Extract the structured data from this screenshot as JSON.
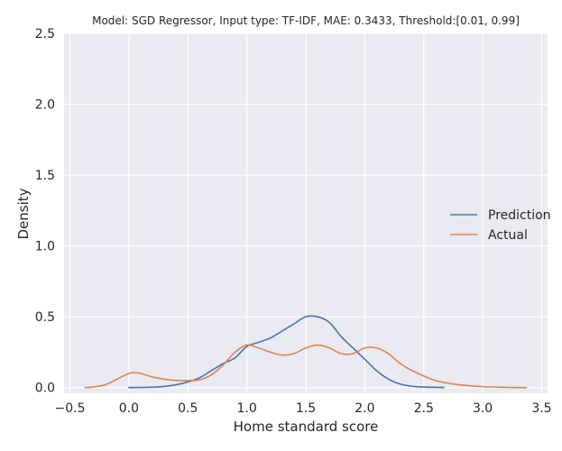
{
  "chart_data": {
    "type": "line",
    "title": "Model: SGD Regressor, Input type: TF-IDF, MAE: 0.3433, Threshold:[0.01, 0.99]",
    "xlabel": "Home standard score",
    "ylabel": "Density",
    "xlim": [
      -0.55,
      3.55
    ],
    "ylim": [
      -0.04,
      2.5
    ],
    "xticks": [
      -0.5,
      0.0,
      0.5,
      1.0,
      1.5,
      2.0,
      2.5,
      3.0,
      3.5
    ],
    "xtick_labels": [
      "−0.5",
      "0.0",
      "0.5",
      "1.0",
      "1.5",
      "2.0",
      "2.5",
      "3.0",
      "3.5"
    ],
    "yticks": [
      0.0,
      0.5,
      1.0,
      1.5,
      2.0,
      2.5
    ],
    "ytick_labels": [
      "0.0",
      "0.5",
      "1.0",
      "1.5",
      "2.0",
      "2.5"
    ],
    "grid": true,
    "legend_position": "center-right",
    "background_color": "#eaeaf2",
    "series": [
      {
        "name": "Prediction",
        "color": "#4c72b0",
        "x": [
          0.0,
          0.2,
          0.3,
          0.4,
          0.5,
          0.6,
          0.7,
          0.8,
          0.9,
          1.0,
          1.1,
          1.2,
          1.3,
          1.4,
          1.5,
          1.6,
          1.7,
          1.8,
          1.9,
          2.0,
          2.1,
          2.2,
          2.3,
          2.4,
          2.5,
          2.6,
          2.67
        ],
        "values": [
          0.0,
          0.003,
          0.008,
          0.02,
          0.04,
          0.07,
          0.12,
          0.17,
          0.21,
          0.29,
          0.32,
          0.35,
          0.4,
          0.45,
          0.5,
          0.5,
          0.46,
          0.36,
          0.28,
          0.2,
          0.12,
          0.06,
          0.025,
          0.01,
          0.004,
          0.002,
          0.001
        ]
      },
      {
        "name": "Actual",
        "color": "#dd8452",
        "x": [
          -0.37,
          -0.3,
          -0.2,
          -0.1,
          0.0,
          0.05,
          0.1,
          0.2,
          0.3,
          0.4,
          0.5,
          0.6,
          0.7,
          0.8,
          0.9,
          1.0,
          1.1,
          1.2,
          1.3,
          1.4,
          1.5,
          1.6,
          1.7,
          1.8,
          1.9,
          2.0,
          2.1,
          2.2,
          2.3,
          2.4,
          2.6,
          2.8,
          3.0,
          3.2,
          3.37
        ],
        "values": [
          0.0,
          0.005,
          0.02,
          0.06,
          0.1,
          0.105,
          0.1,
          0.075,
          0.06,
          0.05,
          0.05,
          0.055,
          0.09,
          0.16,
          0.25,
          0.3,
          0.28,
          0.25,
          0.23,
          0.24,
          0.28,
          0.3,
          0.28,
          0.24,
          0.24,
          0.28,
          0.28,
          0.24,
          0.17,
          0.12,
          0.05,
          0.02,
          0.007,
          0.002,
          0.0
        ]
      }
    ]
  }
}
